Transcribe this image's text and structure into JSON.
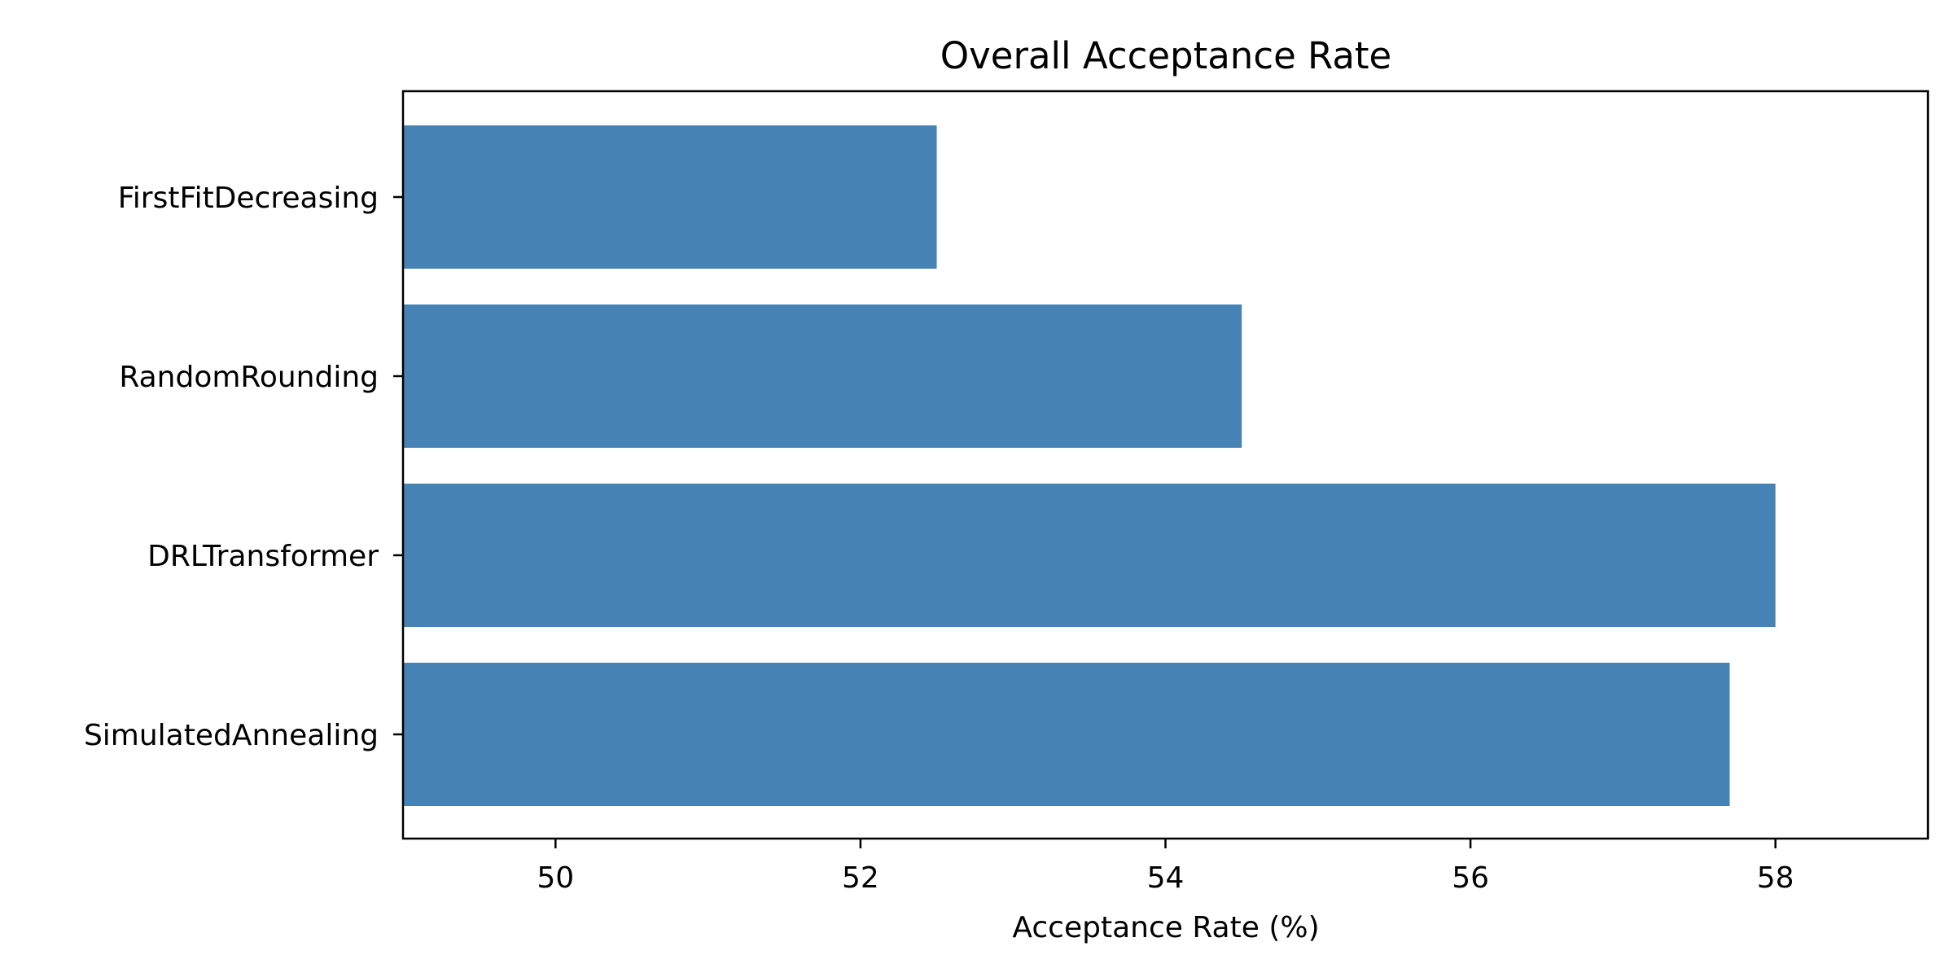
{
  "chart_data": {
    "type": "bar",
    "orientation": "horizontal",
    "title": "Overall Acceptance Rate",
    "xlabel": "Acceptance Rate (%)",
    "ylabel": "",
    "categories": [
      "FirstFitDecreasing",
      "RandomRounding",
      "DRLTransformer",
      "SimulatedAnnealing"
    ],
    "values": [
      52.5,
      54.5,
      58.0,
      57.7
    ],
    "xlim": [
      49.0,
      59.0
    ],
    "xticks": [
      50,
      52,
      54,
      56,
      58
    ],
    "bar_color": "#4682b4",
    "grid": false,
    "legend": "none"
  }
}
